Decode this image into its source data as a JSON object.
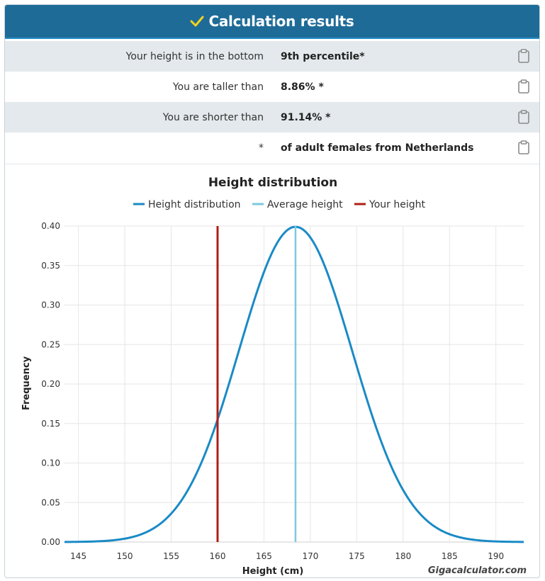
{
  "header": {
    "title": "Calculation results",
    "check_icon": "checkmark-icon"
  },
  "results": [
    {
      "label": "Your height is in the bottom",
      "value": "9th percentile*"
    },
    {
      "label": "You are taller than",
      "value": "8.86% *"
    },
    {
      "label": "You are shorter than",
      "value": "91.14% *"
    },
    {
      "label": "*",
      "value": "of adult females from Netherlands"
    }
  ],
  "chart_data": {
    "type": "line",
    "title": "Height distribution",
    "xlabel": "Height (cm)",
    "ylabel": "Frequency",
    "xlim": [
      143.5,
      193
    ],
    "ylim": [
      0,
      0.4
    ],
    "x_ticks": [
      "145",
      "150",
      "155",
      "160",
      "165",
      "170",
      "175",
      "180",
      "185",
      "190"
    ],
    "y_ticks": [
      "0.00",
      "0.05",
      "0.10",
      "0.15",
      "0.20",
      "0.25",
      "0.30",
      "0.35",
      "0.40"
    ],
    "legend": [
      "Height distribution",
      "Average height",
      "Your height"
    ],
    "series": [
      {
        "name": "Height distribution",
        "color": "#1a8ac6",
        "x": [
          143.5,
          145,
          147.5,
          150,
          152.5,
          155,
          157.5,
          160,
          162.5,
          165,
          167.5,
          168.4,
          170,
          172.5,
          175,
          177.5,
          180,
          182.5,
          185,
          187.5,
          190,
          193
        ],
        "y": [
          0.001,
          0.002,
          0.005,
          0.011,
          0.025,
          0.049,
          0.091,
          0.155,
          0.235,
          0.318,
          0.386,
          0.399,
          0.385,
          0.317,
          0.232,
          0.149,
          0.085,
          0.042,
          0.018,
          0.007,
          0.002,
          0.001
        ]
      }
    ],
    "average_height": {
      "x": 168.4,
      "color": "#7cc8df"
    },
    "your_height": {
      "x": 160,
      "color": "#b01d16"
    },
    "watermark": "Gigacalculator.com"
  },
  "icons": {
    "copy": "clipboard-icon"
  }
}
